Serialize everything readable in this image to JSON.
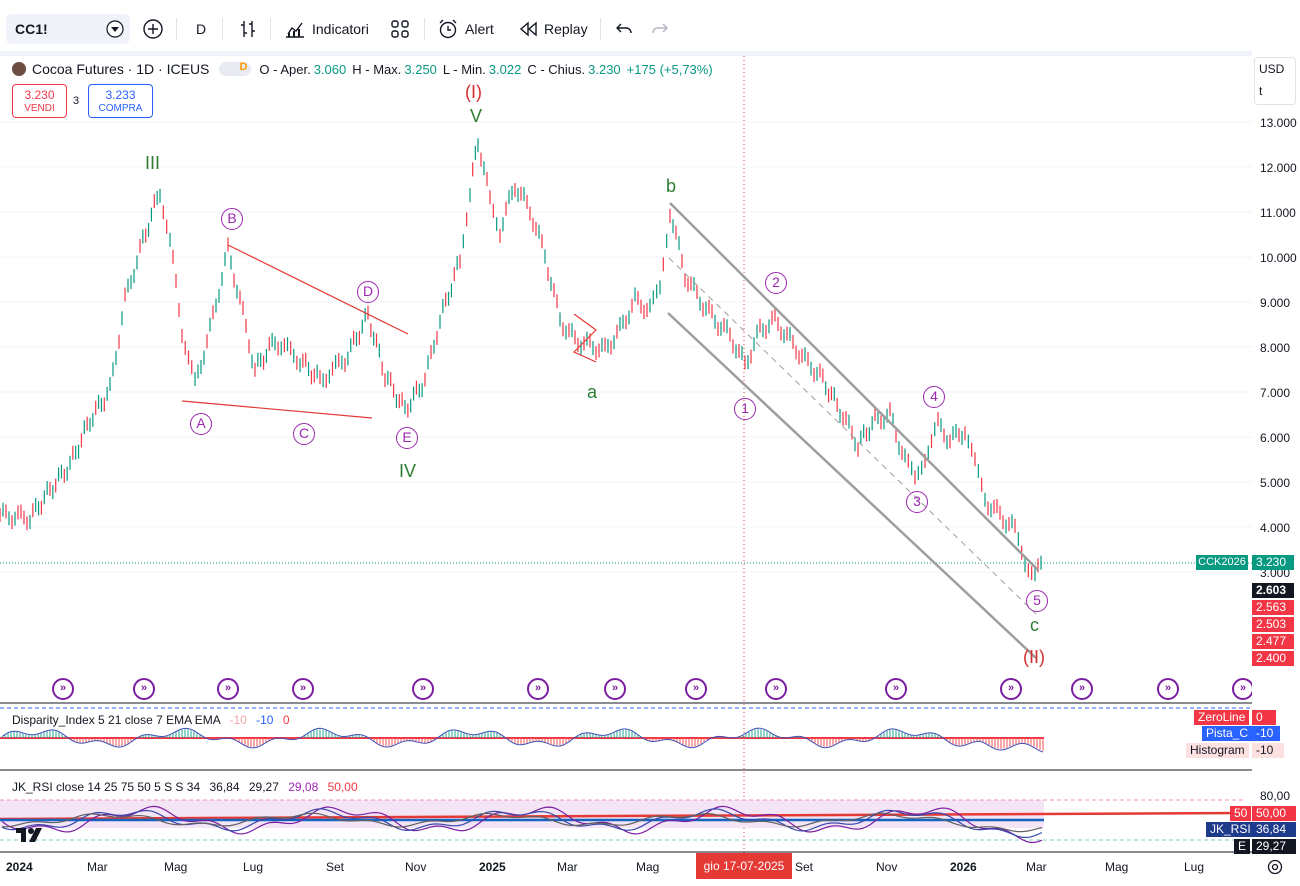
{
  "toolbar": {
    "symbol": "CC1!",
    "interval": "D",
    "indicators_label": "Indicatori",
    "alert_label": "Alert",
    "replay_label": "Replay"
  },
  "legend": {
    "title": "Cocoa Futures · 1D · ICEUS",
    "badge": "D",
    "open_label": "O - Aper.",
    "open": "3.060",
    "high_label": "H - Max.",
    "high": "3.250",
    "low_label": "L - Min.",
    "low": "3.022",
    "close_label": "C - Chius.",
    "close": "3.230",
    "change": "+175 (+5,73%)"
  },
  "trade": {
    "sell_price": "3.230",
    "sell_label": "VENDI",
    "quantity": "3",
    "buy_price": "3.233",
    "buy_label": "COMPRA"
  },
  "price_axis": {
    "currency": "USD",
    "unit": "t",
    "labels": [
      "13.000",
      "12.000",
      "11.000",
      "10.000",
      "9.000",
      "8.000",
      "7.000",
      "6.000",
      "5.000",
      "4.000",
      "3.000"
    ],
    "ticker_tag": "CCK2026",
    "current_price": "3.230",
    "targets": [
      "2.603",
      "2.563",
      "2.503",
      "2.477",
      "2.400"
    ]
  },
  "waves": {
    "primary": [
      "(I)",
      "(II)"
    ],
    "intermediate": [
      "III",
      "IV",
      "V"
    ],
    "corrective": [
      "a",
      "b",
      "c"
    ],
    "triangle": [
      "A",
      "B",
      "C",
      "D",
      "E"
    ],
    "impulse": [
      "1",
      "2",
      "3",
      "4",
      "5"
    ]
  },
  "indicator1": {
    "name": "Disparity_Index 5 21 close 7 EMA EMA",
    "v1": "-10",
    "v2": "-10",
    "v3": "0",
    "tags": [
      {
        "label": "ZeroLine",
        "value": "0"
      },
      {
        "label": "Pista_C",
        "value": "-10"
      },
      {
        "label": "Histogram",
        "value": "-10"
      }
    ]
  },
  "indicator2": {
    "name": "JK_RSI close 14 25 75 50 5 S S 34",
    "v1": "36,84",
    "v2": "29,27",
    "v3": "29,08",
    "v4": "50,00",
    "axis_top": "80,00",
    "tags": [
      {
        "label": "50",
        "value": "50,00"
      },
      {
        "label": "JK_RSI",
        "value": "36,84"
      },
      {
        "label": "E",
        "value": "29,27"
      }
    ]
  },
  "time_axis": {
    "labels": [
      "2024",
      "Mar",
      "Mag",
      "Lug",
      "Set",
      "Nov",
      "2025",
      "Mar",
      "Mag",
      "Set",
      "Nov",
      "2026",
      "Mar",
      "Mag",
      "Lug"
    ],
    "crosshair_date": "gio 17-07-2025"
  },
  "colors": {
    "up": "#089981",
    "down": "#f23645",
    "wave_green": "#2e7d32",
    "wave_red": "#d32f2f",
    "wave_purple": "#9c27b0",
    "channel": "#9e9e9e"
  }
}
